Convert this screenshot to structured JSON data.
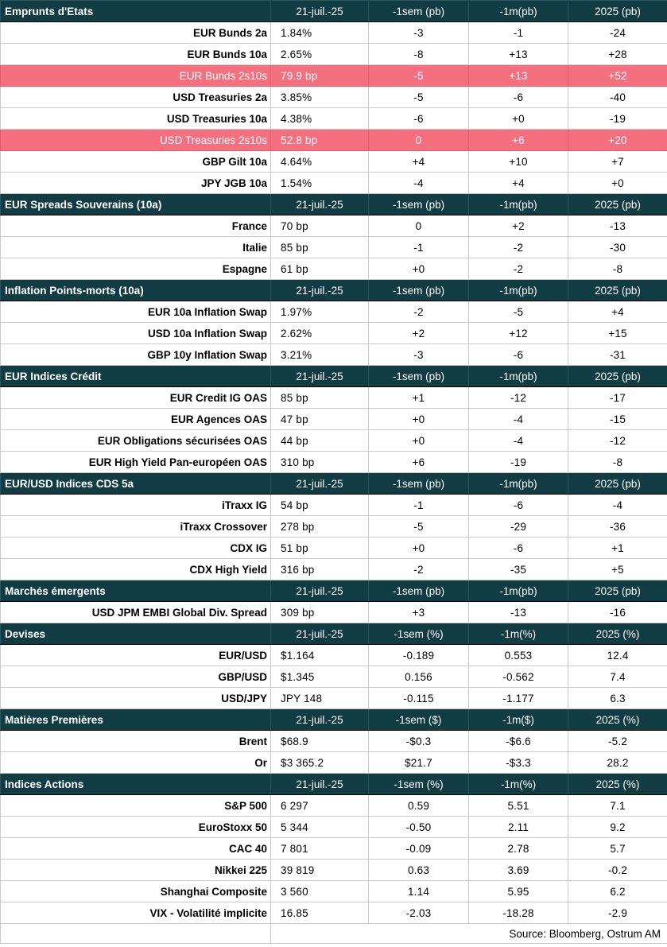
{
  "colors": {
    "header_bg": "#123c44",
    "header_text": "#ffffff",
    "highlight_bg": "#f4707f",
    "highlight_text": "#ffffff",
    "grid": "#c9c9c9"
  },
  "sections": [
    {
      "title": "Emprunts d'Etats",
      "columns": [
        "21-juil.-25",
        "-1sem (pb)",
        "-1m(pb)",
        "2025 (pb)"
      ],
      "rows": [
        {
          "label": "EUR Bunds 2a",
          "values": [
            "1.84%",
            "-3",
            "-1",
            "-24"
          ]
        },
        {
          "label": "EUR Bunds 10a",
          "values": [
            "2.65%",
            "-8",
            "+13",
            "+28"
          ]
        },
        {
          "label": "EUR Bunds 2s10s",
          "values": [
            "79.9 bp",
            "-5",
            "+13",
            "+52"
          ],
          "highlight": true
        },
        {
          "label": "USD Treasuries 2a",
          "values": [
            "3.85%",
            "-5",
            "-6",
            "-40"
          ]
        },
        {
          "label": "USD Treasuries 10a",
          "values": [
            "4.38%",
            "-6",
            "+0",
            "-19"
          ]
        },
        {
          "label": "USD Treasuries 2s10s",
          "values": [
            "52.8 bp",
            "0",
            "+6",
            "+20"
          ],
          "highlight": true
        },
        {
          "label": "GBP Gilt 10a",
          "values": [
            "4.64%",
            "+4",
            "+10",
            "+7"
          ]
        },
        {
          "label": "JPY JGB  10a",
          "values": [
            "1.54%",
            "-4",
            "+4",
            "+0"
          ]
        }
      ]
    },
    {
      "title": "EUR Spreads Souverains (10a)",
      "columns": [
        "21-juil.-25",
        "-1sem (pb)",
        "-1m(pb)",
        "2025 (pb)"
      ],
      "rows": [
        {
          "label": "France",
          "values": [
            "70 bp",
            "0",
            "+2",
            "-13"
          ]
        },
        {
          "label": "Italie",
          "values": [
            "85 bp",
            "-1",
            "-2",
            "-30"
          ]
        },
        {
          "label": "Espagne",
          "values": [
            "61 bp",
            "+0",
            "-2",
            "-8"
          ]
        }
      ]
    },
    {
      "title": " Inflation Points-morts (10a)",
      "columns": [
        "21-juil.-25",
        "-1sem (pb)",
        "-1m(pb)",
        "2025 (pb)"
      ],
      "rows": [
        {
          "label": "EUR 10a Inflation Swap",
          "values": [
            "1.97%",
            "-2",
            "-5",
            "+4"
          ]
        },
        {
          "label": "USD 10a Inflation Swap",
          "values": [
            "2.62%",
            "+2",
            "+12",
            "+15"
          ]
        },
        {
          "label": "GBP 10y Inflation Swap",
          "values": [
            "3.21%",
            "-3",
            "-6",
            "-31"
          ]
        }
      ]
    },
    {
      "title": "EUR Indices Crédit",
      "columns": [
        "21-juil.-25",
        "-1sem (pb)",
        "-1m(pb)",
        "2025 (pb)"
      ],
      "rows": [
        {
          "label": "EUR Credit IG OAS",
          "values": [
            "85 bp",
            "+1",
            "-12",
            "-17"
          ]
        },
        {
          "label": "EUR Agences OAS",
          "values": [
            "47 bp",
            "+0",
            "-4",
            "-15"
          ]
        },
        {
          "label": "EUR Obligations sécurisées OAS",
          "values": [
            "44 bp",
            "+0",
            "-4",
            "-12"
          ]
        },
        {
          "label": "EUR High Yield Pan-européen OAS",
          "values": [
            "310 bp",
            "+6",
            "-19",
            "-8"
          ]
        }
      ]
    },
    {
      "title": "EUR/USD Indices CDS 5a",
      "columns": [
        "21-juil.-25",
        "-1sem (pb)",
        "-1m(pb)",
        "2025 (pb)"
      ],
      "rows": [
        {
          "label": "iTraxx IG",
          "values": [
            "54 bp",
            "-1",
            "-6",
            "-4"
          ]
        },
        {
          "label": "iTraxx Crossover",
          "values": [
            "278 bp",
            "-5",
            "-29",
            "-36"
          ]
        },
        {
          "label": "CDX IG",
          "values": [
            "51 bp",
            "+0",
            "-6",
            "+1"
          ]
        },
        {
          "label": "CDX High Yield",
          "values": [
            "316 bp",
            "-2",
            "-35",
            "+5"
          ]
        }
      ]
    },
    {
      "title": "Marchés émergents",
      "columns": [
        "21-juil.-25",
        "-1sem (pb)",
        "-1m(pb)",
        "2025 (pb)"
      ],
      "rows": [
        {
          "label": "USD JPM EMBI Global Div. Spread",
          "values": [
            "309 bp",
            "+3",
            "-13",
            "-16"
          ]
        }
      ]
    },
    {
      "title": "Devises",
      "columns": [
        "21-juil.-25",
        "-1sem (%)",
        "-1m(%)",
        "2025 (%)"
      ],
      "rows": [
        {
          "label": "EUR/USD",
          "values": [
            "$1.164",
            "-0.189",
            "0.553",
            "12.4"
          ]
        },
        {
          "label": "GBP/USD",
          "values": [
            "$1.345",
            "0.156",
            "-0.562",
            "7.4"
          ]
        },
        {
          "label": "USD/JPY",
          "values": [
            "JPY 148",
            "-0.115",
            "-1.177",
            "6.3"
          ]
        }
      ]
    },
    {
      "title": "Matières Premières",
      "columns": [
        "21-juil.-25",
        "-1sem ($)",
        "-1m($)",
        "2025 (%)"
      ],
      "rows": [
        {
          "label": "Brent",
          "values": [
            "$68.9",
            "-$0.3",
            "-$6.6",
            "-5.2"
          ]
        },
        {
          "label": "Or",
          "values": [
            "$3 365.2",
            "$21.7",
            "-$3.3",
            "28.2"
          ]
        }
      ]
    },
    {
      "title": "Indices Actions",
      "columns": [
        "21-juil.-25",
        "-1sem (%)",
        "-1m(%)",
        "2025 (%)"
      ],
      "rows": [
        {
          "label": "S&P 500",
          "values": [
            "6 297",
            "0.59",
            "5.51",
            "7.1"
          ]
        },
        {
          "label": "EuroStoxx 50",
          "values": [
            "5 344",
            "-0.50",
            "2.11",
            "9.2"
          ]
        },
        {
          "label": "CAC 40",
          "values": [
            "7 801",
            "-0.09",
            "2.78",
            "5.7"
          ]
        },
        {
          "label": "Nikkei 225",
          "values": [
            "39 819",
            "0.63",
            "3.69",
            "-0.2"
          ]
        },
        {
          "label": "Shanghai Composite",
          "values": [
            "3 560",
            "1.14",
            "5.95",
            "6.2"
          ]
        },
        {
          "label": "VIX - Volatilité implicite",
          "values": [
            "16.85",
            "-2.03",
            "-18.28",
            "-2.9"
          ]
        }
      ]
    }
  ],
  "source": "Source: Bloomberg, Ostrum AM"
}
